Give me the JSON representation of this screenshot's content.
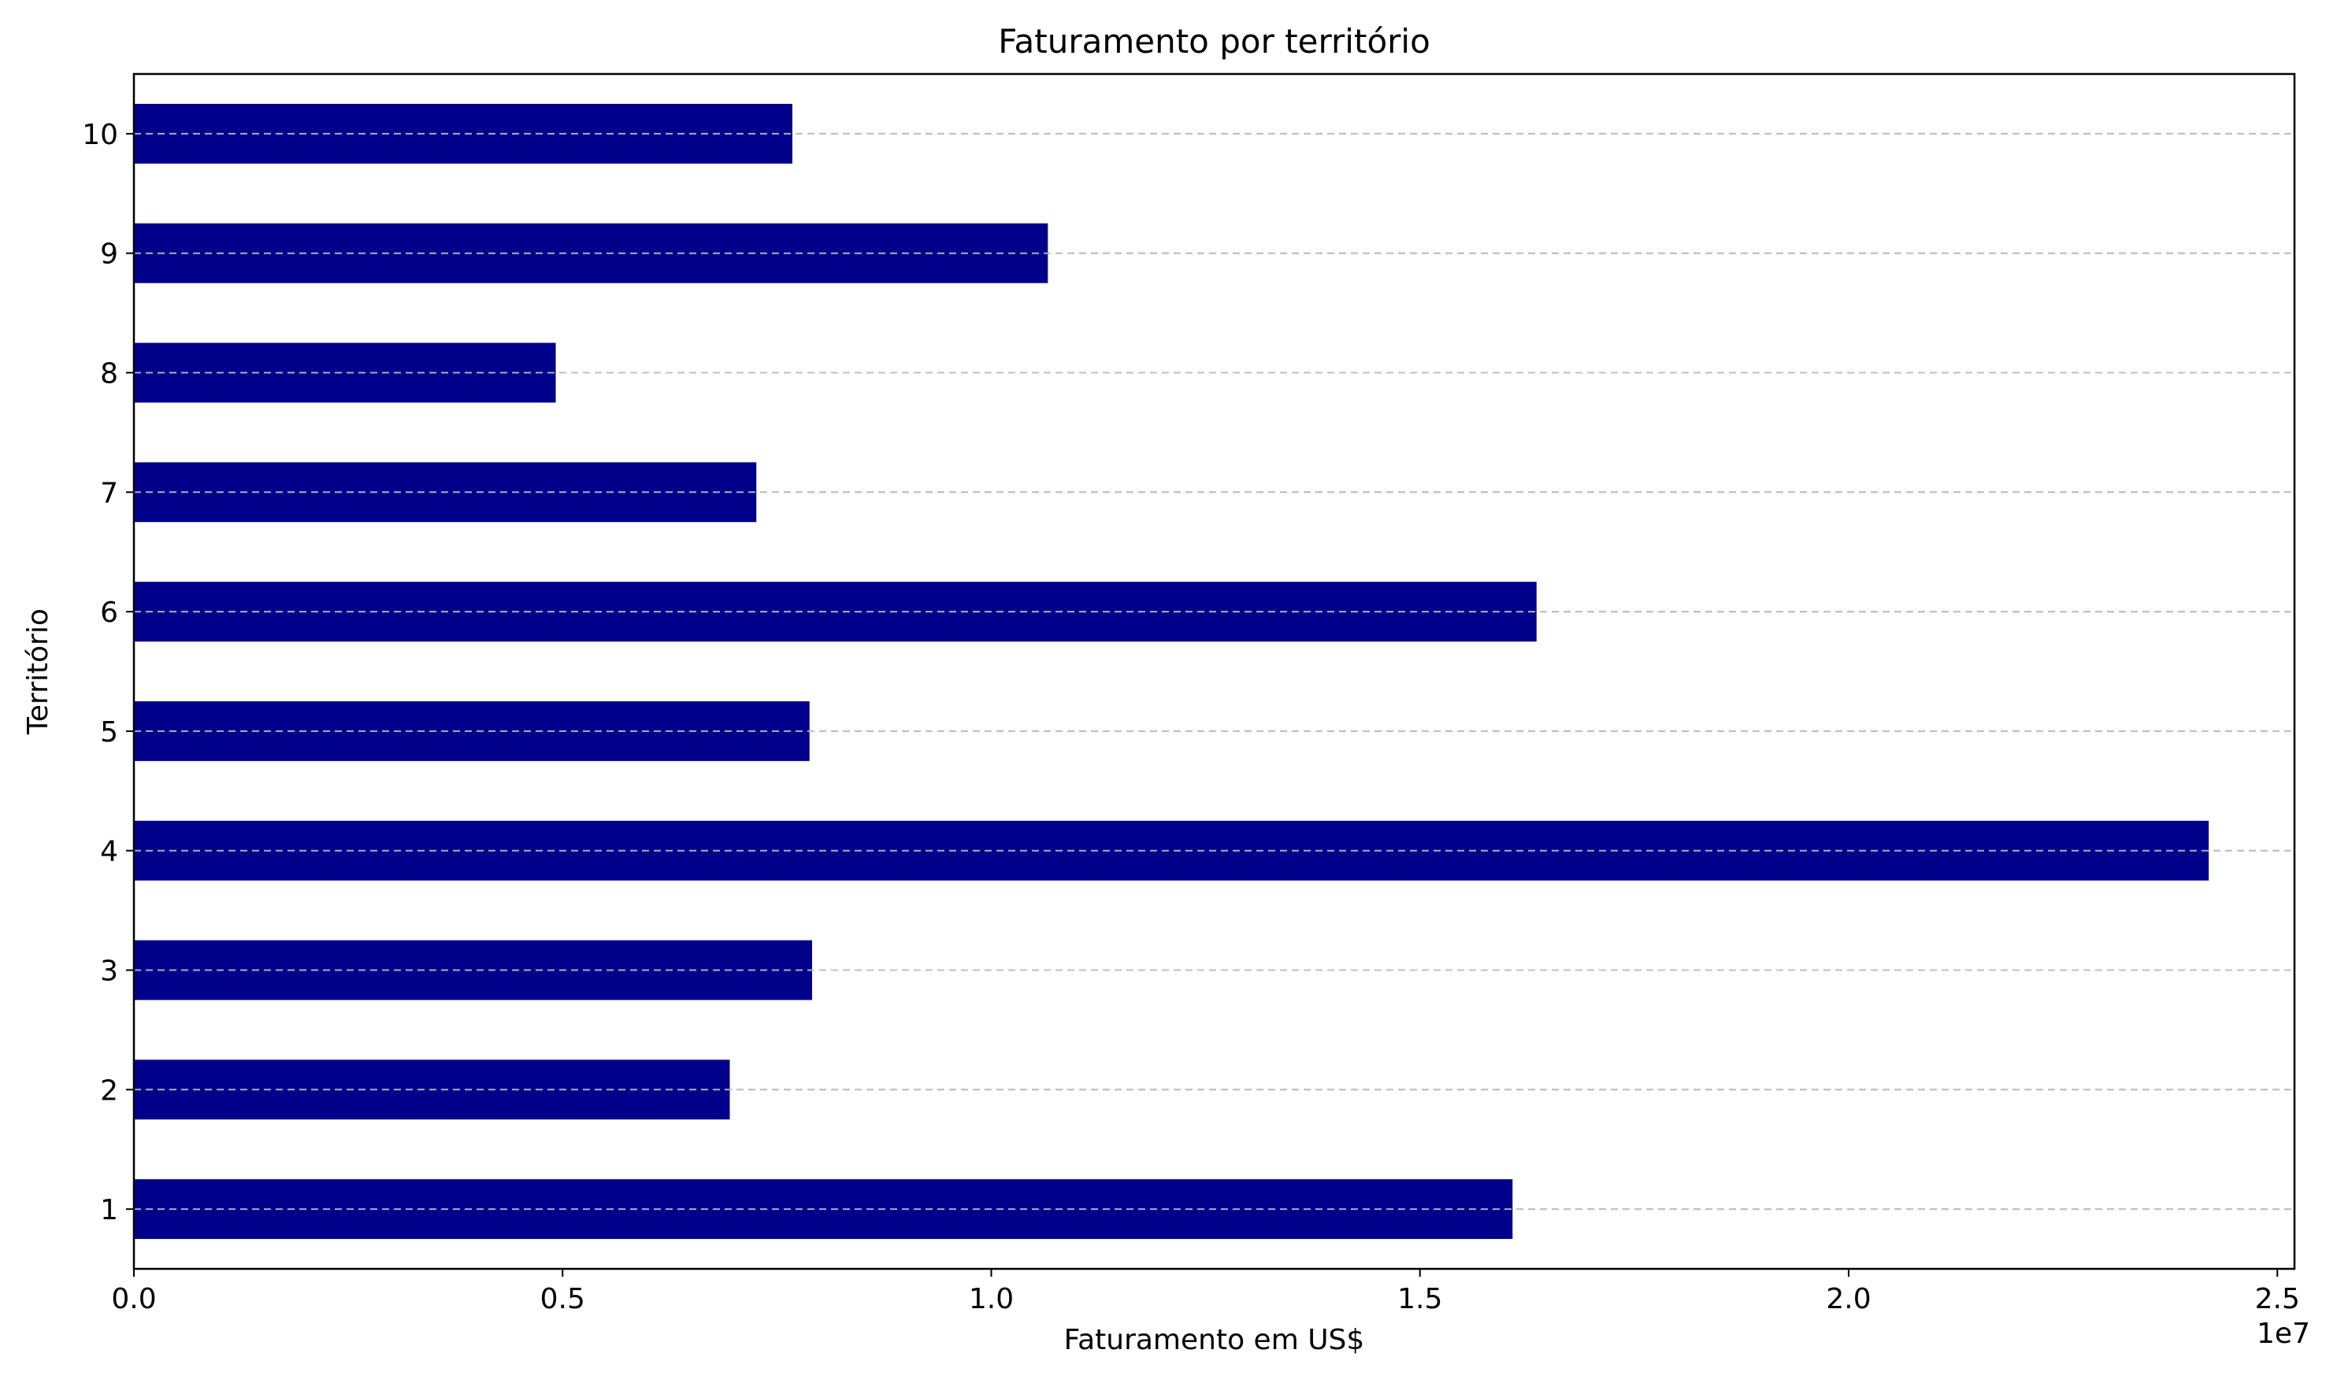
{
  "chart_data": {
    "type": "bar",
    "orientation": "horizontal",
    "title": "Faturamento por território",
    "xlabel": "Faturamento em US$",
    "ylabel": "Território",
    "x_offset_label": "1e7",
    "categories": [
      "1",
      "2",
      "3",
      "4",
      "5",
      "6",
      "7",
      "8",
      "9",
      "10"
    ],
    "values": [
      16080000,
      6950000,
      7910000,
      24200000,
      7880000,
      16360000,
      7260000,
      4920000,
      10660000,
      7680000
    ],
    "xlim": [
      0,
      25200000
    ],
    "xticks": [
      0,
      5000000,
      10000000,
      15000000,
      20000000,
      25000000
    ],
    "xtick_labels": [
      "0.0",
      "0.5",
      "1.0",
      "1.5",
      "2.0",
      "2.5"
    ],
    "bar_color": "#00008b",
    "grid": {
      "axis": "y",
      "style": "dashed",
      "color": "#c0c0c0"
    },
    "legend": "none"
  }
}
